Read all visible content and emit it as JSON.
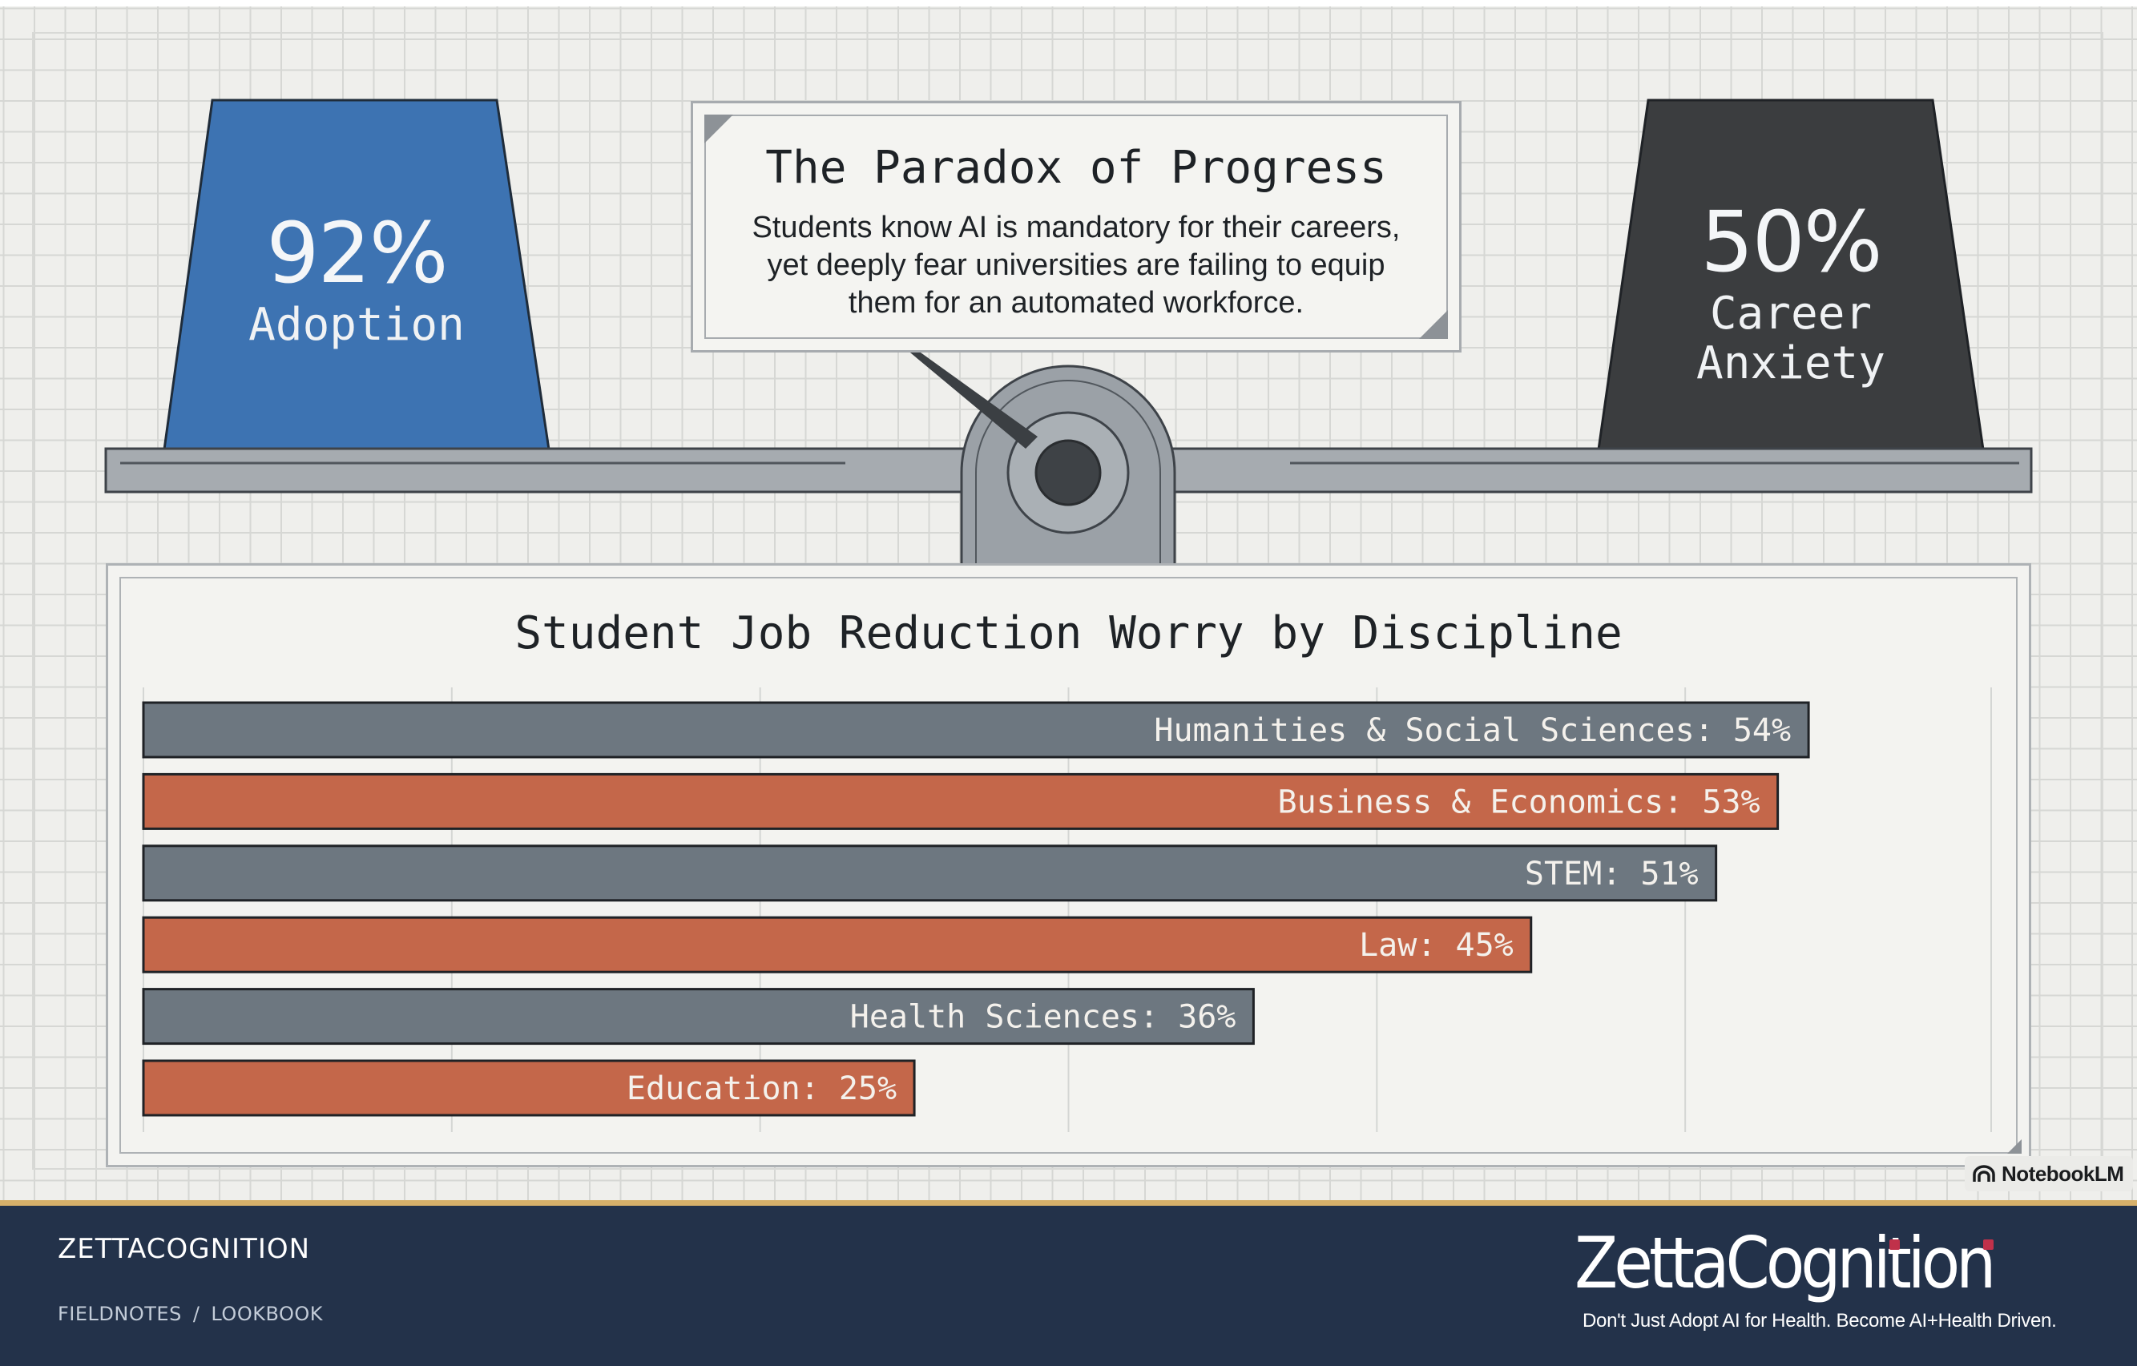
{
  "colors": {
    "blue": "#3d73b2",
    "charcoal": "#3b3d3f",
    "slate_bar": "#6d7780",
    "orange_bar": "#c4674a",
    "footer_bg": "#23324a",
    "accent_gold": "#d6b06a"
  },
  "left_weight": {
    "value": "92%",
    "label": "Adoption"
  },
  "right_weight": {
    "value": "50%",
    "label_line1": "Career",
    "label_line2": "Anxiety"
  },
  "callout": {
    "title": "The Paradox of Progress",
    "body_line1": "Students know AI is mandatory for their careers,",
    "body_line2": "yet deeply fear universities are failing to equip",
    "body_line3": "them for an automated workforce."
  },
  "chart_data": {
    "type": "bar",
    "orientation": "horizontal",
    "title": "Student Job Reduction Worry by Discipline",
    "categories": [
      "Humanities & Social Sciences",
      "Business & Economics",
      "STEM",
      "Law",
      "Health Sciences",
      "Education"
    ],
    "values": [
      54,
      53,
      51,
      45,
      36,
      25
    ],
    "data_labels": [
      "Humanities & Social Sciences: 54%",
      "Business & Economics: 53%",
      "STEM: 51%",
      "Law: 45%",
      "Health Sciences: 36%",
      "Education: 25%"
    ],
    "unit": "%",
    "xlim": [
      0,
      60
    ],
    "grid": true,
    "legend": "none",
    "bar_colors": [
      "#6d7780",
      "#c4674a",
      "#6d7780",
      "#c4674a",
      "#6d7780",
      "#c4674a"
    ]
  },
  "badge": {
    "text": "NotebookLM",
    "icon": "notebooklm-icon"
  },
  "footer": {
    "brand": "ZETTACOGNITION",
    "crumb1": "FIELDNOTES",
    "separator": "/",
    "crumb2": "LOOKBOOK",
    "logo_text": "ZettaCognition",
    "tagline": "Don't Just Adopt AI for Health. Become AI+Health Driven."
  }
}
